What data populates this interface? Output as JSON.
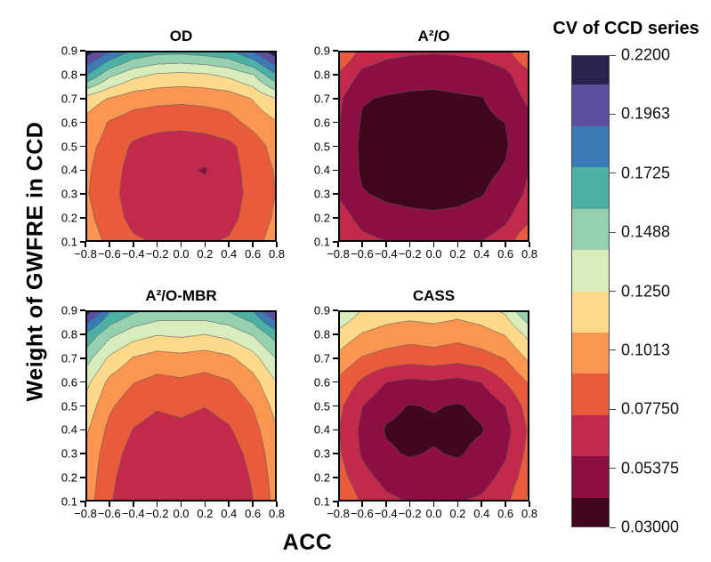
{
  "figure": {
    "x_axis_label": "ACC",
    "y_axis_label": "Weight of GWFRE in CCD",
    "background": "#ffffff"
  },
  "colorbar": {
    "title": "CV of CCD series",
    "tick_labels": [
      "0.2200",
      "0.1963",
      "0.1725",
      "0.1488",
      "0.1250",
      "0.1013",
      "0.07750",
      "0.05375",
      "0.03000"
    ],
    "min": 0.03,
    "max": 0.22,
    "border_color": "#4a4a4a"
  },
  "chart_data": {
    "type": "heatmap",
    "subtype": "filled-contour",
    "legend_position": "right-colorbar",
    "value_scale": {
      "label": "CV of CCD series",
      "min": 0.03,
      "max": 0.22,
      "n_bands": 12
    },
    "band_colors_low_to_high": [
      "#40071f",
      "#8c0e43",
      "#c2294a",
      "#e85c3b",
      "#fa9651",
      "#fdd98c",
      "#d9edbc",
      "#96d0b0",
      "#4cb0a5",
      "#3a7ab5",
      "#5a4fa0",
      "#2a2350"
    ],
    "contour_line_color": "#565656",
    "x": [
      -0.8,
      -0.6,
      -0.4,
      -0.2,
      0.0,
      0.2,
      0.4,
      0.6,
      0.8
    ],
    "y_top_to_bottom": [
      0.9,
      0.8,
      0.7,
      0.6,
      0.5,
      0.4,
      0.3,
      0.2,
      0.1
    ],
    "x_tick_labels": [
      "−0.8",
      "−0.6",
      "−0.4",
      "−0.2",
      "0.0",
      "0.2",
      "0.4",
      "0.6",
      "0.8"
    ],
    "y_tick_labels": [
      "0.9",
      "0.8",
      "0.7",
      "0.6",
      "0.5",
      "0.4",
      "0.3",
      "0.2",
      "0.1"
    ],
    "panels": [
      {
        "title": "OD",
        "grid_rows_top_to_bottom": [
          [
            0.215,
            0.19,
            0.17,
            0.163,
            0.162,
            0.165,
            0.17,
            0.19,
            0.218
          ],
          [
            0.175,
            0.145,
            0.13,
            0.123,
            0.121,
            0.123,
            0.129,
            0.14,
            0.172
          ],
          [
            0.118,
            0.108,
            0.1,
            0.098,
            0.097,
            0.098,
            0.1,
            0.11,
            0.125
          ],
          [
            0.105,
            0.092,
            0.086,
            0.083,
            0.082,
            0.084,
            0.088,
            0.098,
            0.108
          ],
          [
            0.098,
            0.088,
            0.075,
            0.07,
            0.069,
            0.07,
            0.074,
            0.085,
            0.1
          ],
          [
            0.096,
            0.085,
            0.071,
            0.067,
            0.065,
            0.0603,
            0.072,
            0.083,
            0.095
          ],
          [
            0.095,
            0.083,
            0.07,
            0.067,
            0.066,
            0.067,
            0.071,
            0.082,
            0.094
          ],
          [
            0.098,
            0.085,
            0.073,
            0.07,
            0.069,
            0.07,
            0.073,
            0.084,
            0.096
          ],
          [
            0.102,
            0.09,
            0.08,
            0.076,
            0.0755,
            0.076,
            0.079,
            0.088,
            0.1
          ]
        ]
      },
      {
        "title": "A²/O",
        "grid_rows_top_to_bottom": [
          [
            0.098,
            0.072,
            0.066,
            0.064,
            0.063,
            0.064,
            0.066,
            0.072,
            0.1
          ],
          [
            0.075,
            0.058,
            0.054,
            0.052,
            0.052,
            0.052,
            0.054,
            0.058,
            0.072
          ],
          [
            0.065,
            0.047,
            0.0445,
            0.043,
            0.042,
            0.044,
            0.045,
            0.053,
            0.065
          ],
          [
            0.063,
            0.044,
            0.041,
            0.04,
            0.04,
            0.041,
            0.042,
            0.046,
            0.058
          ],
          [
            0.062,
            0.042,
            0.039,
            0.038,
            0.038,
            0.039,
            0.041,
            0.044,
            0.058
          ],
          [
            0.063,
            0.043,
            0.04,
            0.039,
            0.039,
            0.04,
            0.042,
            0.047,
            0.062
          ],
          [
            0.06,
            0.047,
            0.043,
            0.0415,
            0.041,
            0.042,
            0.045,
            0.052,
            0.065
          ],
          [
            0.07,
            0.056,
            0.051,
            0.049,
            0.048,
            0.049,
            0.052,
            0.059,
            0.072
          ],
          [
            0.078,
            0.066,
            0.062,
            0.0605,
            0.06,
            0.0605,
            0.062,
            0.068,
            0.095
          ]
        ]
      },
      {
        "title": "A²/O-MBR",
        "grid_rows_top_to_bottom": [
          [
            0.215,
            0.175,
            0.16,
            0.152,
            0.15,
            0.152,
            0.158,
            0.172,
            0.21
          ],
          [
            0.17,
            0.145,
            0.132,
            0.126,
            0.128,
            0.125,
            0.13,
            0.142,
            0.165
          ],
          [
            0.148,
            0.122,
            0.108,
            0.102,
            0.104,
            0.101,
            0.106,
            0.118,
            0.142
          ],
          [
            0.13,
            0.105,
            0.094,
            0.089,
            0.091,
            0.088,
            0.092,
            0.103,
            0.125
          ],
          [
            0.12,
            0.096,
            0.084,
            0.079,
            0.081,
            0.078,
            0.083,
            0.094,
            0.115
          ],
          [
            0.112,
            0.089,
            0.077,
            0.072,
            0.074,
            0.071,
            0.076,
            0.087,
            0.108
          ],
          [
            0.107,
            0.084,
            0.072,
            0.067,
            0.069,
            0.066,
            0.071,
            0.082,
            0.104
          ],
          [
            0.104,
            0.081,
            0.069,
            0.065,
            0.067,
            0.064,
            0.068,
            0.079,
            0.101
          ],
          [
            0.102,
            0.079,
            0.067,
            0.063,
            0.065,
            0.062,
            0.066,
            0.077,
            0.099
          ]
        ]
      },
      {
        "title": "CASS",
        "grid_rows_top_to_bottom": [
          [
            0.142,
            0.124,
            0.118,
            0.116,
            0.118,
            0.115,
            0.119,
            0.128,
            0.158
          ],
          [
            0.12,
            0.108,
            0.103,
            0.1,
            0.102,
            0.099,
            0.103,
            0.11,
            0.13
          ],
          [
            0.105,
            0.092,
            0.087,
            0.084,
            0.086,
            0.083,
            0.087,
            0.094,
            0.112
          ],
          [
            0.09,
            0.075,
            0.062,
            0.058,
            0.06,
            0.057,
            0.062,
            0.078,
            0.095
          ],
          [
            0.082,
            0.062,
            0.05,
            0.045,
            0.047,
            0.0445,
            0.049,
            0.062,
            0.085
          ],
          [
            0.078,
            0.058,
            0.0445,
            0.042,
            0.043,
            0.042,
            0.0448,
            0.056,
            0.08
          ],
          [
            0.08,
            0.06,
            0.048,
            0.0445,
            0.047,
            0.0442,
            0.05,
            0.06,
            0.083
          ],
          [
            0.085,
            0.067,
            0.057,
            0.053,
            0.054,
            0.053,
            0.056,
            0.066,
            0.088
          ],
          [
            0.095,
            0.075,
            0.065,
            0.061,
            0.0605,
            0.061,
            0.064,
            0.073,
            0.098
          ]
        ]
      }
    ]
  }
}
